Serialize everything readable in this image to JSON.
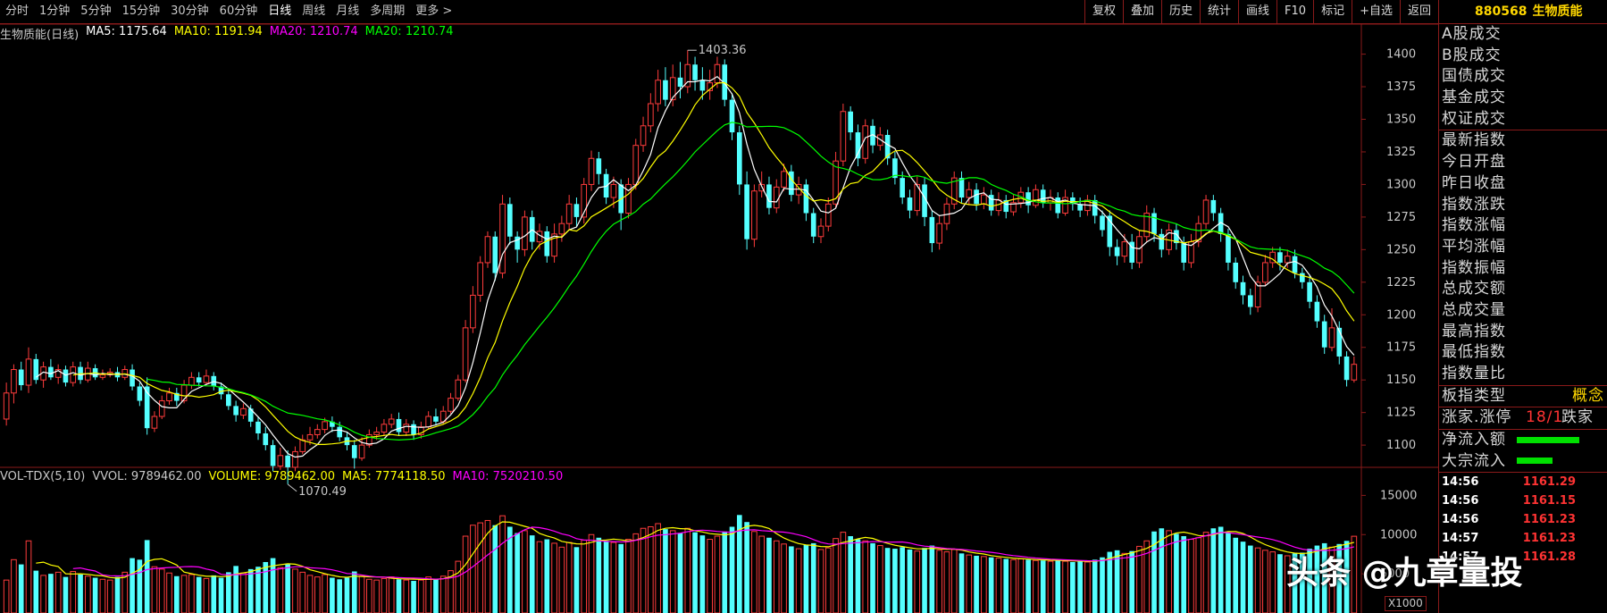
{
  "toolbar": {
    "periods": [
      "分时",
      "1分钟",
      "5分钟",
      "15分钟",
      "30分钟",
      "60分钟",
      "日线",
      "周线",
      "月线",
      "多周期",
      "更多 >"
    ],
    "active_period": "日线",
    "buttons": [
      "复权",
      "叠加",
      "历史",
      "统计",
      "画线",
      "F10",
      "标记",
      "+自选",
      "返回"
    ]
  },
  "indicators": {
    "name": "生物质能(日线)",
    "ma5": "MA5: 1175.64",
    "ma10": "MA10: 1191.94",
    "ma20a": "MA20: 1210.74",
    "ma20b": "MA20: 1210.74",
    "colors": {
      "ma5": "#ffffff",
      "ma10": "#ffff00",
      "ma20a": "#ff00ff",
      "ma20b": "#00ff00"
    }
  },
  "volume_indicators": {
    "name": "VOL-TDX(5,10)",
    "vvol": "VVOL: 9789462.00",
    "volume": "VOLUME: 9789462.00",
    "ma5": "MA5: 7774118.50",
    "ma10": "MA10: 7520210.50"
  },
  "chart_data": {
    "type": "candlestick",
    "price_axis": {
      "ticks": [
        1100,
        1125,
        1150,
        1175,
        1200,
        1225,
        1250,
        1275,
        1300,
        1325,
        1350,
        1375,
        1400
      ],
      "min": 1085,
      "max": 1410
    },
    "volume_axis": {
      "ticks": [
        "5000",
        "10000",
        "15000"
      ],
      "unit": "X1000"
    },
    "annotations": {
      "high": "1403.36",
      "low": "1070.49"
    },
    "candles": [
      [
        1120,
        1140,
        1148,
        1115,
        4200
      ],
      [
        1140,
        1158,
        1162,
        1132,
        6800
      ],
      [
        1158,
        1146,
        1164,
        1142,
        6200
      ],
      [
        1146,
        1166,
        1175,
        1140,
        9200
      ],
      [
        1166,
        1150,
        1170,
        1147,
        5400
      ],
      [
        1150,
        1160,
        1164,
        1144,
        4800
      ],
      [
        1160,
        1152,
        1166,
        1150,
        5000
      ],
      [
        1152,
        1158,
        1162,
        1147,
        5200
      ],
      [
        1158,
        1148,
        1161,
        1145,
        4600
      ],
      [
        1148,
        1160,
        1164,
        1145,
        5300
      ],
      [
        1160,
        1150,
        1164,
        1147,
        4900
      ],
      [
        1150,
        1159,
        1164,
        1148,
        4700
      ],
      [
        1159,
        1152,
        1162,
        1150,
        4500
      ],
      [
        1152,
        1154,
        1158,
        1150,
        4300
      ],
      [
        1154,
        1156,
        1159,
        1152,
        4200
      ],
      [
        1156,
        1152,
        1160,
        1149,
        4600
      ],
      [
        1152,
        1158,
        1161,
        1150,
        5200
      ],
      [
        1158,
        1145,
        1162,
        1142,
        7000
      ],
      [
        1145,
        1134,
        1148,
        1130,
        6800
      ],
      [
        1145,
        1113,
        1152,
        1108,
        9300
      ],
      [
        1113,
        1122,
        1126,
        1110,
        5900
      ],
      [
        1122,
        1134,
        1138,
        1120,
        5600
      ],
      [
        1134,
        1140,
        1144,
        1131,
        5100
      ],
      [
        1140,
        1134,
        1144,
        1130,
        4700
      ],
      [
        1134,
        1146,
        1150,
        1132,
        4800
      ],
      [
        1146,
        1152,
        1156,
        1143,
        4900
      ],
      [
        1152,
        1148,
        1156,
        1145,
        4600
      ],
      [
        1148,
        1153,
        1158,
        1146,
        4400
      ],
      [
        1153,
        1145,
        1156,
        1142,
        4800
      ],
      [
        1145,
        1139,
        1148,
        1135,
        4500
      ],
      [
        1139,
        1130,
        1143,
        1127,
        5200
      ],
      [
        1130,
        1123,
        1134,
        1118,
        6000
      ],
      [
        1123,
        1128,
        1132,
        1120,
        5100
      ],
      [
        1128,
        1118,
        1131,
        1114,
        5600
      ],
      [
        1118,
        1109,
        1122,
        1104,
        5900
      ],
      [
        1109,
        1100,
        1114,
        1096,
        6500
      ],
      [
        1100,
        1084,
        1104,
        1080,
        7000
      ],
      [
        1084,
        1092,
        1098,
        1081,
        5800
      ],
      [
        1092,
        1083,
        1096,
        1070,
        6200
      ],
      [
        1083,
        1095,
        1099,
        1080,
        5600
      ],
      [
        1095,
        1104,
        1108,
        1093,
        5200
      ],
      [
        1104,
        1108,
        1114,
        1100,
        4800
      ],
      [
        1108,
        1112,
        1116,
        1105,
        4600
      ],
      [
        1112,
        1118,
        1121,
        1109,
        4900
      ],
      [
        1118,
        1114,
        1122,
        1110,
        4500
      ],
      [
        1114,
        1106,
        1118,
        1103,
        4300
      ],
      [
        1106,
        1100,
        1110,
        1096,
        4500
      ],
      [
        1100,
        1090,
        1104,
        1082,
        5300
      ],
      [
        1090,
        1100,
        1106,
        1088,
        4700
      ],
      [
        1100,
        1108,
        1112,
        1098,
        4300
      ],
      [
        1108,
        1110,
        1114,
        1104,
        4200
      ],
      [
        1110,
        1116,
        1120,
        1107,
        4400
      ],
      [
        1116,
        1120,
        1124,
        1113,
        4600
      ],
      [
        1120,
        1110,
        1125,
        1107,
        4300
      ],
      [
        1110,
        1116,
        1120,
        1107,
        4200
      ],
      [
        1116,
        1108,
        1119,
        1104,
        4100
      ],
      [
        1108,
        1114,
        1118,
        1105,
        4200
      ],
      [
        1114,
        1122,
        1126,
        1112,
        4600
      ],
      [
        1122,
        1118,
        1128,
        1115,
        4300
      ],
      [
        1118,
        1126,
        1130,
        1116,
        4700
      ],
      [
        1126,
        1136,
        1140,
        1124,
        5400
      ],
      [
        1136,
        1150,
        1154,
        1134,
        6600
      ],
      [
        1150,
        1190,
        1196,
        1148,
        9800
      ],
      [
        1190,
        1215,
        1222,
        1186,
        11200
      ],
      [
        1215,
        1240,
        1245,
        1210,
        11500
      ],
      [
        1240,
        1260,
        1264,
        1236,
        11800
      ],
      [
        1260,
        1232,
        1264,
        1226,
        11200
      ],
      [
        1232,
        1285,
        1292,
        1228,
        12400
      ],
      [
        1285,
        1260,
        1290,
        1254,
        11000
      ],
      [
        1260,
        1250,
        1264,
        1240,
        10200
      ],
      [
        1250,
        1275,
        1280,
        1245,
        10500
      ],
      [
        1275,
        1256,
        1280,
        1250,
        9900
      ],
      [
        1256,
        1264,
        1270,
        1250,
        9100
      ],
      [
        1264,
        1245,
        1268,
        1240,
        9400
      ],
      [
        1245,
        1262,
        1270,
        1240,
        8900
      ],
      [
        1262,
        1270,
        1276,
        1256,
        8400
      ],
      [
        1270,
        1285,
        1292,
        1265,
        9000
      ],
      [
        1285,
        1275,
        1290,
        1268,
        8400
      ],
      [
        1275,
        1300,
        1305,
        1270,
        9300
      ],
      [
        1300,
        1320,
        1326,
        1295,
        10000
      ],
      [
        1320,
        1308,
        1325,
        1300,
        9600
      ],
      [
        1308,
        1290,
        1312,
        1285,
        9200
      ],
      [
        1290,
        1300,
        1306,
        1282,
        9000
      ],
      [
        1300,
        1278,
        1304,
        1265,
        8800
      ],
      [
        1278,
        1300,
        1305,
        1274,
        9400
      ],
      [
        1300,
        1330,
        1335,
        1296,
        10100
      ],
      [
        1330,
        1345,
        1352,
        1325,
        10800
      ],
      [
        1345,
        1362,
        1370,
        1340,
        11000
      ],
      [
        1362,
        1380,
        1388,
        1356,
        11400
      ],
      [
        1380,
        1365,
        1390,
        1360,
        10700
      ],
      [
        1365,
        1382,
        1392,
        1360,
        10500
      ],
      [
        1382,
        1375,
        1394,
        1366,
        10200
      ],
      [
        1375,
        1392,
        1403,
        1370,
        10800
      ],
      [
        1392,
        1380,
        1398,
        1372,
        10300
      ],
      [
        1380,
        1372,
        1390,
        1365,
        9900
      ],
      [
        1372,
        1378,
        1388,
        1365,
        9400
      ],
      [
        1378,
        1392,
        1398,
        1374,
        9800
      ],
      [
        1392,
        1365,
        1396,
        1360,
        10400
      ],
      [
        1365,
        1340,
        1370,
        1334,
        11000
      ],
      [
        1340,
        1300,
        1345,
        1292,
        12500
      ],
      [
        1300,
        1258,
        1310,
        1250,
        11600
      ],
      [
        1258,
        1295,
        1300,
        1252,
        10400
      ],
      [
        1295,
        1300,
        1310,
        1290,
        9800
      ],
      [
        1300,
        1282,
        1306,
        1277,
        9600
      ],
      [
        1282,
        1298,
        1304,
        1278,
        9200
      ],
      [
        1298,
        1310,
        1316,
        1295,
        8800
      ],
      [
        1310,
        1292,
        1315,
        1287,
        8500
      ],
      [
        1292,
        1300,
        1306,
        1285,
        8200
      ],
      [
        1300,
        1278,
        1304,
        1272,
        8700
      ],
      [
        1278,
        1260,
        1282,
        1255,
        8900
      ],
      [
        1260,
        1268,
        1274,
        1255,
        8100
      ],
      [
        1268,
        1285,
        1290,
        1264,
        8300
      ],
      [
        1285,
        1318,
        1325,
        1282,
        9500
      ],
      [
        1318,
        1356,
        1362,
        1314,
        10300
      ],
      [
        1356,
        1340,
        1360,
        1334,
        9800
      ],
      [
        1340,
        1320,
        1346,
        1314,
        9400
      ],
      [
        1320,
        1345,
        1350,
        1316,
        9200
      ],
      [
        1345,
        1330,
        1350,
        1324,
        8900
      ],
      [
        1330,
        1338,
        1344,
        1326,
        8600
      ],
      [
        1338,
        1320,
        1342,
        1315,
        8300
      ],
      [
        1320,
        1305,
        1325,
        1300,
        8200
      ],
      [
        1305,
        1290,
        1310,
        1285,
        8400
      ],
      [
        1290,
        1280,
        1296,
        1274,
        8100
      ],
      [
        1280,
        1300,
        1306,
        1276,
        7900
      ],
      [
        1300,
        1275,
        1305,
        1268,
        8300
      ],
      [
        1275,
        1255,
        1280,
        1248,
        8600
      ],
      [
        1255,
        1270,
        1276,
        1250,
        8000
      ],
      [
        1270,
        1285,
        1290,
        1265,
        7800
      ],
      [
        1285,
        1305,
        1310,
        1281,
        8100
      ],
      [
        1305,
        1290,
        1310,
        1286,
        7600
      ],
      [
        1290,
        1296,
        1302,
        1284,
        7400
      ],
      [
        1296,
        1285,
        1301,
        1280,
        7300
      ],
      [
        1285,
        1292,
        1298,
        1281,
        7200
      ],
      [
        1292,
        1280,
        1296,
        1276,
        7100
      ],
      [
        1280,
        1288,
        1294,
        1276,
        7000
      ],
      [
        1288,
        1279,
        1292,
        1274,
        6900
      ],
      [
        1279,
        1286,
        1292,
        1276,
        6800
      ],
      [
        1286,
        1294,
        1298,
        1282,
        6900
      ],
      [
        1294,
        1284,
        1298,
        1278,
        6800
      ],
      [
        1284,
        1296,
        1300,
        1282,
        6700
      ],
      [
        1296,
        1286,
        1300,
        1282,
        6700
      ],
      [
        1286,
        1290,
        1296,
        1280,
        6600
      ],
      [
        1290,
        1278,
        1294,
        1274,
        6800
      ],
      [
        1278,
        1290,
        1296,
        1276,
        6600
      ],
      [
        1290,
        1285,
        1294,
        1280,
        6500
      ],
      [
        1285,
        1280,
        1290,
        1275,
        6600
      ],
      [
        1280,
        1288,
        1292,
        1276,
        6500
      ],
      [
        1288,
        1276,
        1292,
        1270,
        6800
      ],
      [
        1276,
        1265,
        1280,
        1260,
        7100
      ],
      [
        1276,
        1252,
        1280,
        1245,
        7800
      ],
      [
        1252,
        1245,
        1258,
        1238,
        8000
      ],
      [
        1245,
        1256,
        1262,
        1240,
        7600
      ],
      [
        1256,
        1240,
        1262,
        1235,
        7900
      ],
      [
        1240,
        1260,
        1265,
        1236,
        8500
      ],
      [
        1260,
        1278,
        1284,
        1256,
        9200
      ],
      [
        1278,
        1262,
        1282,
        1256,
        10400
      ],
      [
        1262,
        1250,
        1266,
        1244,
        10800
      ],
      [
        1250,
        1265,
        1270,
        1246,
        10500
      ],
      [
        1265,
        1255,
        1270,
        1250,
        10100
      ],
      [
        1255,
        1240,
        1260,
        1234,
        9800
      ],
      [
        1240,
        1256,
        1262,
        1236,
        9400
      ],
      [
        1256,
        1270,
        1276,
        1252,
        9600
      ],
      [
        1270,
        1288,
        1292,
        1266,
        10300
      ],
      [
        1288,
        1278,
        1292,
        1272,
        10800
      ],
      [
        1278,
        1262,
        1282,
        1256,
        11000
      ],
      [
        1262,
        1240,
        1266,
        1234,
        10200
      ],
      [
        1240,
        1225,
        1244,
        1220,
        9600
      ],
      [
        1225,
        1215,
        1230,
        1208,
        9100
      ],
      [
        1215,
        1206,
        1220,
        1200,
        8600
      ],
      [
        1206,
        1225,
        1230,
        1202,
        8300
      ],
      [
        1225,
        1240,
        1246,
        1222,
        8000
      ],
      [
        1240,
        1248,
        1252,
        1236,
        7800
      ],
      [
        1248,
        1240,
        1252,
        1234,
        7500
      ],
      [
        1240,
        1245,
        1250,
        1236,
        7300
      ],
      [
        1245,
        1232,
        1250,
        1228,
        7600
      ],
      [
        1232,
        1225,
        1236,
        1220,
        7700
      ],
      [
        1225,
        1210,
        1230,
        1205,
        8200
      ],
      [
        1210,
        1195,
        1215,
        1190,
        8600
      ],
      [
        1195,
        1175,
        1200,
        1170,
        8900
      ],
      [
        1175,
        1190,
        1205,
        1172,
        8400
      ],
      [
        1190,
        1168,
        1195,
        1162,
        8800
      ],
      [
        1168,
        1150,
        1172,
        1145,
        9200
      ],
      [
        1150,
        1162,
        1168,
        1148,
        9789
      ]
    ]
  },
  "sidebar": {
    "code": "880568",
    "name": "生物质能",
    "rows1": [
      "A股成交",
      "B股成交",
      "国债成交",
      "基金成交",
      "权证成交"
    ],
    "rows2": [
      "最新指数",
      "今日开盘",
      "昨日收盘",
      "指数涨跌",
      "指数涨幅",
      "平均涨幅",
      "指数振幅",
      "总成交额",
      "总成交量",
      "最高指数",
      "最低指数",
      "指数量比"
    ],
    "board_type_label": "板指类型",
    "board_type_value": "概念",
    "updown_label": "涨家.涨停",
    "updown_value": "18/1",
    "fall_label": "跌家",
    "netflow_label": "净流入额",
    "bigflow_label": "大宗流入",
    "ticks": [
      {
        "time": "14:56",
        "price": "1161.29"
      },
      {
        "time": "14:56",
        "price": "1161.15"
      },
      {
        "time": "14:56",
        "price": "1161.23"
      },
      {
        "time": "14:57",
        "price": "1161.23"
      },
      {
        "time": "14:57",
        "price": "1161.28"
      }
    ]
  },
  "watermark": "头条 @九章量投",
  "vol_unit": "X1000"
}
